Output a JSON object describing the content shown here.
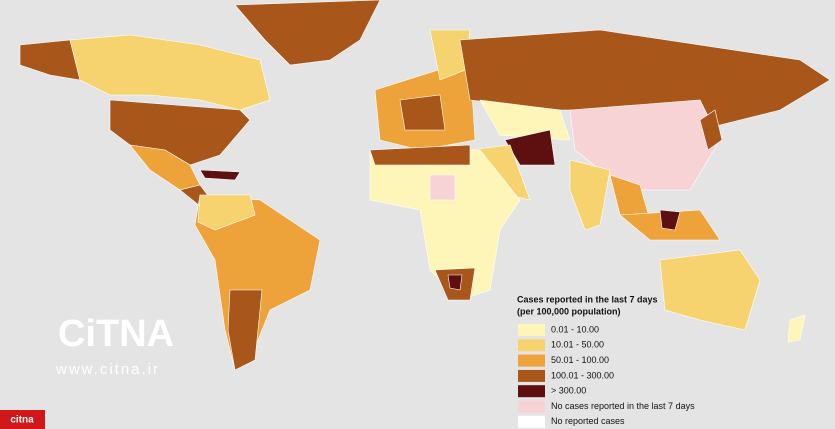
{
  "legend": {
    "title": "Cases reported in the last 7 days",
    "subtitle": "(per 100,000 population)",
    "items": [
      {
        "label": "0.01 - 10.00",
        "color": "#fdf6b8"
      },
      {
        "label": "10.01 - 50.00",
        "color": "#f6d36e"
      },
      {
        "label": "50.01 - 100.00",
        "color": "#eda33a"
      },
      {
        "label": "100.01 - 300.00",
        "color": "#a9561a"
      },
      {
        "label": "> 300.00",
        "color": "#5e1010"
      },
      {
        "label": "No cases reported in the last 7 days",
        "color": "#f7d3d6"
      },
      {
        "label": "No reported cases",
        "color": "#ffffff"
      }
    ]
  },
  "watermark": {
    "logo": "CiTNA",
    "url": "www.citna.ir",
    "badge": "citna"
  }
}
